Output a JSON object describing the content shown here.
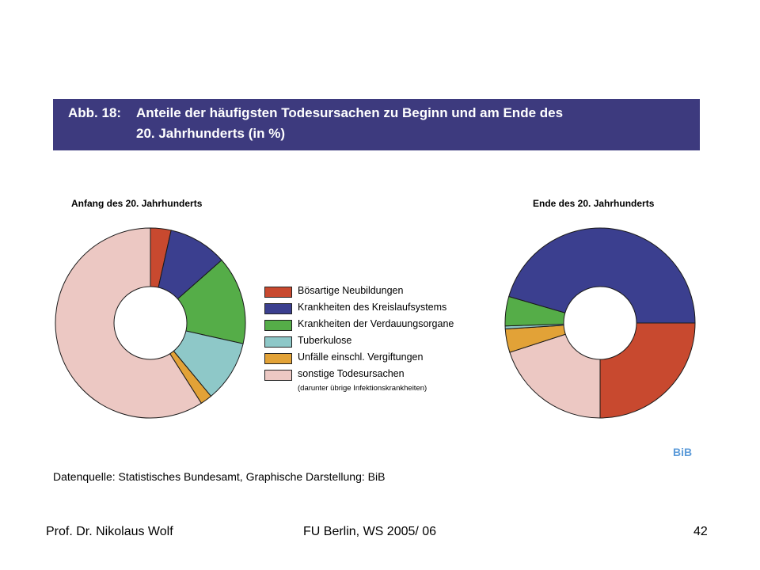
{
  "banner": {
    "prefix": "Abb. 18:",
    "line1": "Anteile der häufigsten Todesursachen zu Beginn und am Ende des",
    "line2": "20. Jahrhunderts (in %)"
  },
  "chart_data": [
    {
      "type": "pie",
      "title": "Anfang des 20. Jahrhunderts",
      "donut": true,
      "start_angle_deg": 90,
      "direction": "clockwise",
      "categories": [
        "Bösartige Neubildungen",
        "Krankheiten des Kreislaufsystems",
        "Krankheiten der Verdauungsorgane",
        "Tuberkulose",
        "Unfälle einschl. Vergiftungen",
        "sonstige Todesursachen"
      ],
      "values": [
        3.5,
        10,
        15,
        10.5,
        2,
        59
      ],
      "colors": [
        "#c8492f",
        "#3b3f8f",
        "#55ad48",
        "#8ec8c8",
        "#e2a237",
        "#ecc8c3"
      ]
    },
    {
      "type": "pie",
      "title": "Ende des 20. Jahrhunderts",
      "donut": true,
      "start_angle_deg": 0,
      "direction": "clockwise",
      "categories": [
        "Bösartige Neubildungen",
        "sonstige Todesursachen",
        "Unfälle einschl. Vergiftungen",
        "Tuberkulose",
        "Krankheiten der Verdauungsorgane",
        "Krankheiten des Kreislaufsystems"
      ],
      "values": [
        25,
        20,
        4,
        0.5,
        5,
        45.5
      ],
      "colors": [
        "#c8492f",
        "#ecc8c3",
        "#e2a237",
        "#8ec8c8",
        "#55ad48",
        "#3b3f8f"
      ]
    }
  ],
  "legend": {
    "items": [
      {
        "label": "Bösartige Neubildungen",
        "color": "#c8492f"
      },
      {
        "label": "Krankheiten des Kreislaufsystems",
        "color": "#3b3f8f"
      },
      {
        "label": "Krankheiten der Verdauungsorgane",
        "color": "#55ad48"
      },
      {
        "label": "Tuberkulose",
        "color": "#8ec8c8"
      },
      {
        "label": "Unfälle einschl. Vergiftungen",
        "color": "#e2a237"
      },
      {
        "label": "sonstige Todesursachen",
        "color": "#ecc8c3"
      }
    ],
    "note": "(darunter übrige Infektionskrankheiten)"
  },
  "source": "Datenquelle: Statistisches Bundesamt, Graphische Darstellung: BiB",
  "logo": "BiB",
  "footer": {
    "left": "Prof. Dr. Nikolaus Wolf",
    "center": "FU Berlin, WS 2005/ 06",
    "right": "42"
  }
}
